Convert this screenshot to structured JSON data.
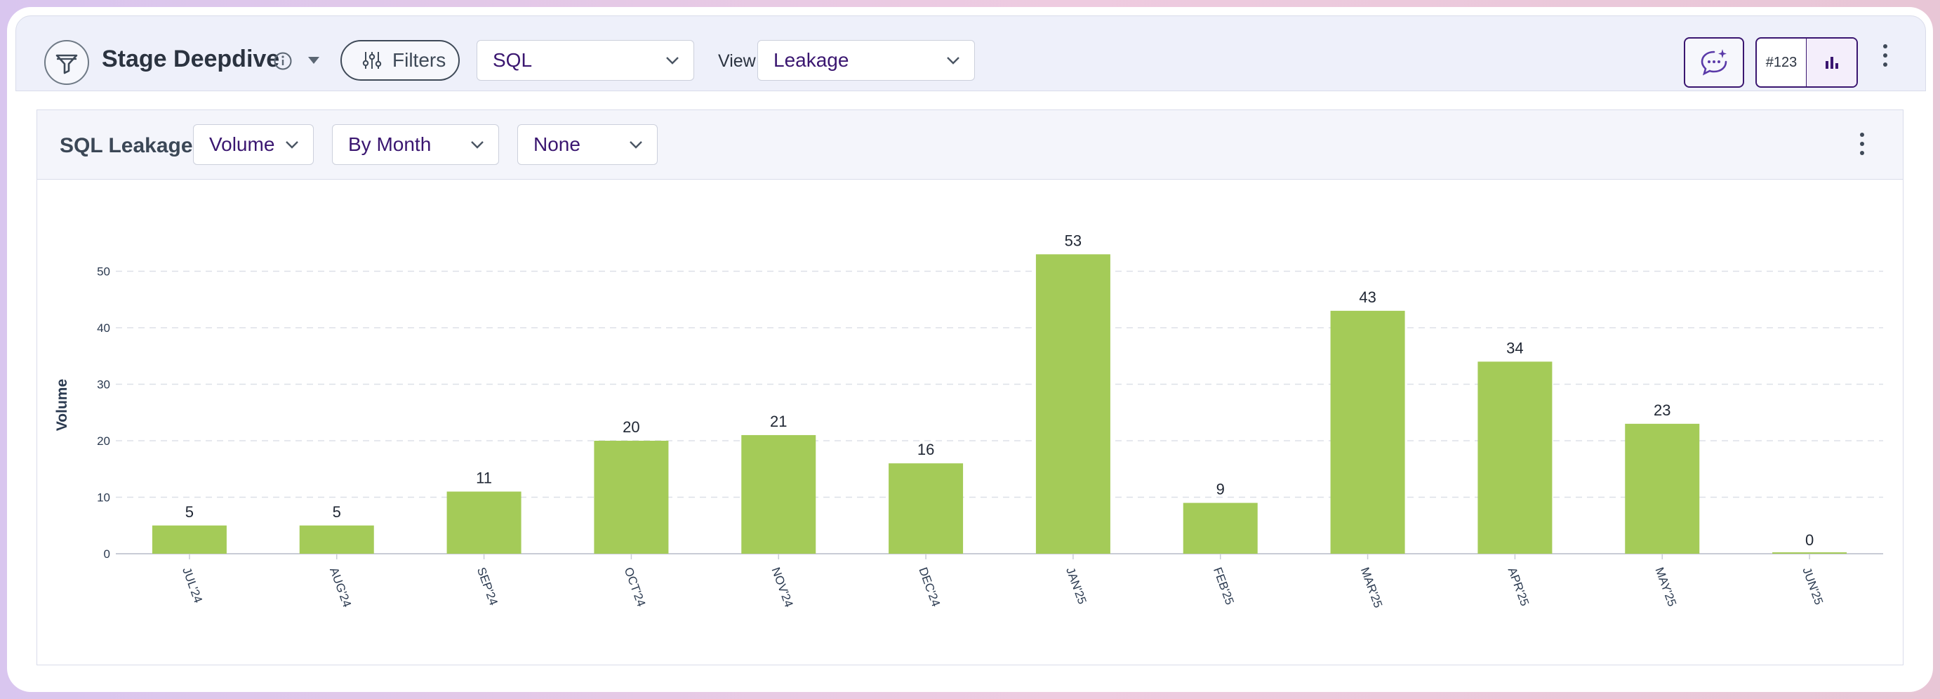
{
  "header": {
    "title": "Stage Deepdive",
    "filters_label": "Filters",
    "stage_select": "SQL",
    "view_label": "View:",
    "view_select": "Leakage",
    "toggle_number_label": "#123"
  },
  "panel": {
    "title": "SQL Leakage",
    "metric_select": "Volume",
    "period_select": "By Month",
    "group_select": "None"
  },
  "colors": {
    "bar": "#a4cb58",
    "accent": "#3a1670"
  },
  "chart_data": {
    "type": "bar",
    "categories": [
      "JUL'24",
      "AUG'24",
      "SEP'24",
      "OCT'24",
      "NOV'24",
      "DEC'24",
      "JAN'25",
      "FEB'25",
      "MAR'25",
      "APR'25",
      "MAY'25",
      "JUN'25"
    ],
    "values": [
      5,
      5,
      11,
      20,
      21,
      16,
      53,
      9,
      43,
      34,
      23,
      0
    ],
    "ylabel": "Volume",
    "yticks": [
      0,
      10,
      20,
      30,
      40,
      50
    ],
    "ylim": [
      0,
      60
    ],
    "grid": true
  }
}
